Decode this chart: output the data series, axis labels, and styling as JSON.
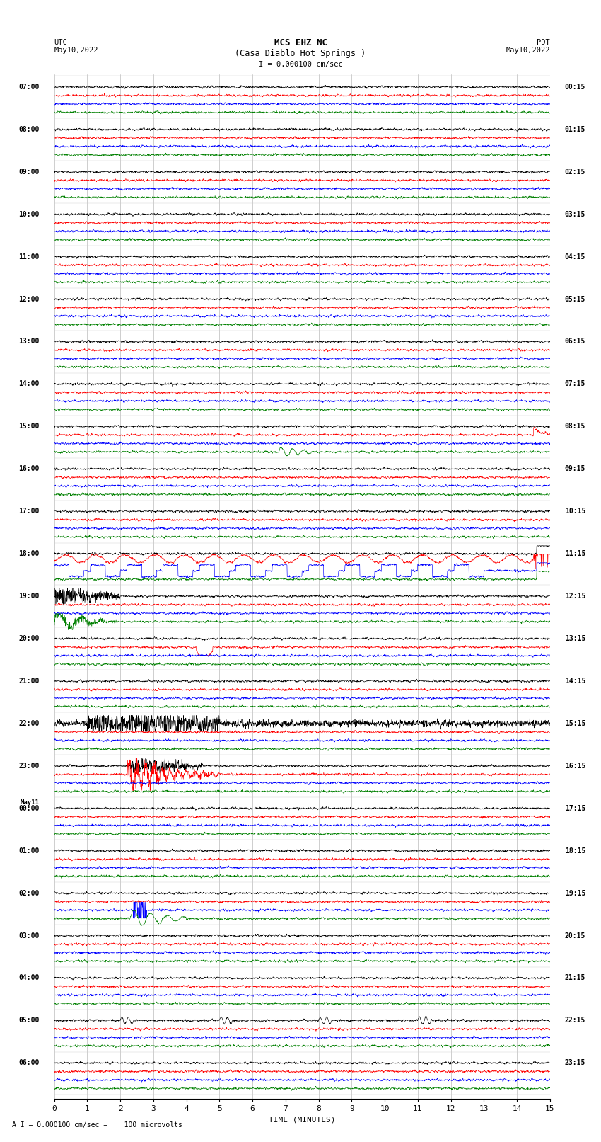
{
  "title_line1": "MCS EHZ NC",
  "title_line2": "(Casa Diablo Hot Springs )",
  "scale_bar": "I = 0.000100 cm/sec",
  "left_header_line1": "UTC",
  "left_header_line2": "May10,2022",
  "right_header_line1": "PDT",
  "right_header_line2": "May10,2022",
  "xlabel": "TIME (MINUTES)",
  "footer": "A I = 0.000100 cm/sec =    100 microvolts",
  "utc_times": [
    "07:00",
    "08:00",
    "09:00",
    "10:00",
    "11:00",
    "12:00",
    "13:00",
    "14:00",
    "15:00",
    "16:00",
    "17:00",
    "18:00",
    "19:00",
    "20:00",
    "21:00",
    "22:00",
    "23:00",
    "00:00",
    "01:00",
    "02:00",
    "03:00",
    "04:00",
    "05:00",
    "06:00"
  ],
  "pdt_times": [
    "00:15",
    "01:15",
    "02:15",
    "03:15",
    "04:15",
    "05:15",
    "06:15",
    "07:15",
    "08:15",
    "09:15",
    "10:15",
    "11:15",
    "12:15",
    "13:15",
    "14:15",
    "15:15",
    "16:15",
    "17:15",
    "18:15",
    "19:15",
    "20:15",
    "21:15",
    "22:15",
    "23:15"
  ],
  "may11_row": 17,
  "n_rows": 24,
  "n_traces_per_row": 4,
  "trace_colors": [
    "black",
    "red",
    "blue",
    "green"
  ],
  "figsize": [
    8.5,
    16.13
  ],
  "dpi": 100,
  "bg_color": "white"
}
